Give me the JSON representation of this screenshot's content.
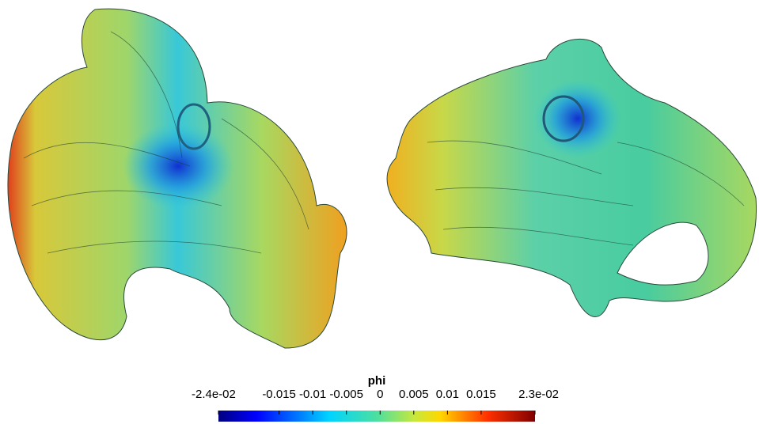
{
  "colorbar": {
    "title": "phi",
    "range": [
      -0.024,
      0.023
    ],
    "ticks": [
      {
        "value": -0.024,
        "label": "-2.4e-02"
      },
      -0.015,
      -0.01,
      -0.005,
      0,
      0.005,
      0.01,
      0.015,
      {
        "value": 0.023,
        "label": "2.3e-02"
      }
    ]
  }
}
